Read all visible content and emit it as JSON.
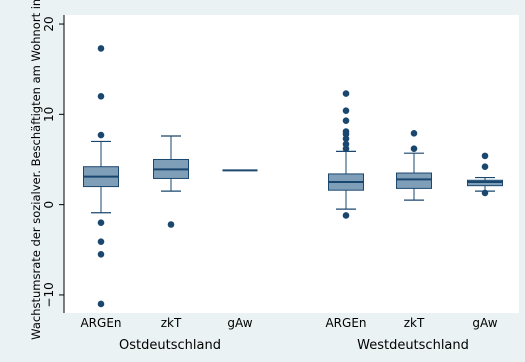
{
  "chart_data": {
    "type": "box",
    "ylabel": "Wachstumsrate der sozialver. Beschäftigten am Wohnort in %",
    "ylim": [
      -12,
      21
    ],
    "yticks": [
      -10,
      0,
      10,
      20
    ],
    "ytick_labels": [
      "−10",
      "0",
      "10",
      "20"
    ],
    "grid": false,
    "groups": [
      {
        "label": "Ostdeutschland",
        "boxes": [
          {
            "category": "ARGEn",
            "whisker_low": -0.9,
            "q1": 2.0,
            "median": 3.1,
            "q3": 4.2,
            "whisker_high": 7.0,
            "outliers": [
              17.3,
              12.0,
              7.7,
              -2.0,
              -4.1,
              -5.5,
              -11.0
            ]
          },
          {
            "category": "zkT",
            "whisker_low": 1.5,
            "q1": 2.9,
            "median": 3.9,
            "q3": 5.0,
            "whisker_high": 7.6,
            "outliers": [
              -2.2
            ]
          },
          {
            "category": "gAw",
            "whisker_low": 3.8,
            "q1": 3.8,
            "median": 3.8,
            "q3": 3.8,
            "whisker_high": 3.8,
            "outliers": []
          }
        ]
      },
      {
        "label": "Westdeutschland",
        "boxes": [
          {
            "category": "ARGEn",
            "whisker_low": -0.5,
            "q1": 1.6,
            "median": 2.5,
            "q3": 3.4,
            "whisker_high": 5.9,
            "outliers": [
              12.3,
              10.4,
              9.3,
              8.1,
              7.8,
              7.3,
              6.7,
              6.2,
              -1.2
            ]
          },
          {
            "category": "zkT",
            "whisker_low": 0.5,
            "q1": 1.8,
            "median": 2.8,
            "q3": 3.5,
            "whisker_high": 5.7,
            "outliers": [
              7.9,
              6.2
            ]
          },
          {
            "category": "gAw",
            "whisker_low": 1.5,
            "q1": 2.1,
            "median": 2.5,
            "q3": 2.7,
            "whisker_high": 3.0,
            "outliers": [
              5.4,
              4.2,
              1.3
            ]
          }
        ]
      }
    ],
    "colors": {
      "background": "#eaf2f3",
      "plot_background": "#ffffff",
      "box_fill": "#7f9fb8",
      "box_stroke": "#1a476f",
      "whisker": "#1a476f",
      "outlier": "#1a476f",
      "axis": "#000000"
    }
  }
}
